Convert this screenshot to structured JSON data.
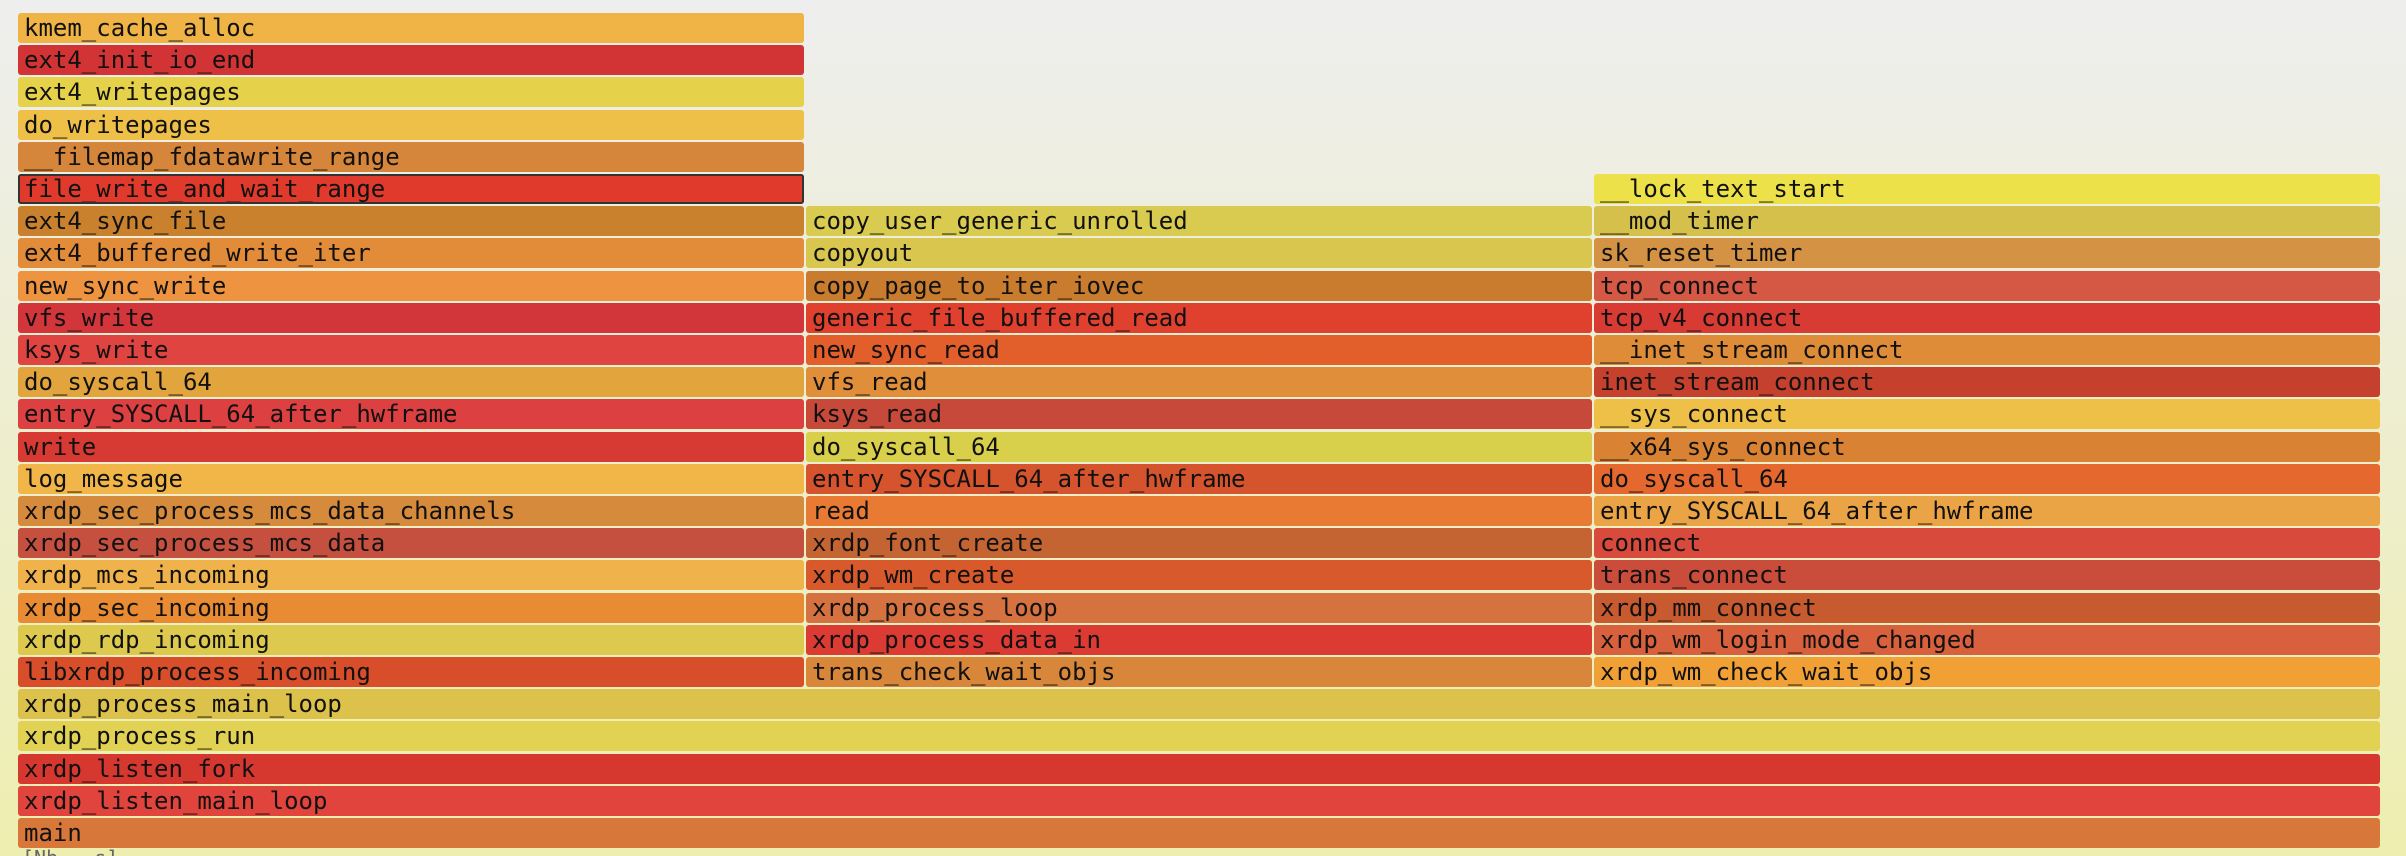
{
  "frames": [
    {
      "name": "main",
      "col": 0,
      "span": 3,
      "level": 0,
      "color": "#d8773a"
    },
    {
      "name": "xrdp_listen_main_loop",
      "col": 0,
      "span": 3,
      "level": 1,
      "color": "#e0443c"
    },
    {
      "name": "xrdp_listen_fork",
      "col": 0,
      "span": 3,
      "level": 2,
      "color": "#d63830"
    },
    {
      "name": "xrdp_process_run",
      "col": 0,
      "span": 3,
      "level": 3,
      "color": "#e2d254"
    },
    {
      "name": "xrdp_process_main_loop",
      "col": 0,
      "span": 3,
      "level": 4,
      "color": "#dcc24a"
    },
    {
      "name": "libxrdp_process_incoming",
      "col": 0,
      "span": 1,
      "level": 5,
      "color": "#d84d2a"
    },
    {
      "name": "xrdp_rdp_incoming",
      "col": 0,
      "span": 1,
      "level": 6,
      "color": "#dcc94e"
    },
    {
      "name": "xrdp_sec_incoming",
      "col": 0,
      "span": 1,
      "level": 7,
      "color": "#e88b32"
    },
    {
      "name": "xrdp_mcs_incoming",
      "col": 0,
      "span": 1,
      "level": 8,
      "color": "#f0b24a"
    },
    {
      "name": "xrdp_sec_process_mcs_data",
      "col": 0,
      "span": 1,
      "level": 9,
      "color": "#c55040"
    },
    {
      "name": "xrdp_sec_process_mcs_data_channels",
      "col": 0,
      "span": 1,
      "level": 10,
      "color": "#d58a3c"
    },
    {
      "name": "log_message",
      "col": 0,
      "span": 1,
      "level": 11,
      "color": "#f2b548"
    },
    {
      "name": "write",
      "col": 0,
      "span": 1,
      "level": 12,
      "color": "#d63a32"
    },
    {
      "name": "entry_SYSCALL_64_after_hwframe",
      "col": 0,
      "span": 1,
      "level": 13,
      "color": "#dc4040"
    },
    {
      "name": "do_syscall_64",
      "col": 0,
      "span": 1,
      "level": 14,
      "color": "#e2a43c"
    },
    {
      "name": "ksys_write",
      "col": 0,
      "span": 1,
      "level": 15,
      "color": "#e04440"
    },
    {
      "name": "vfs_write",
      "col": 0,
      "span": 1,
      "level": 16,
      "color": "#d2353a"
    },
    {
      "name": "new_sync_write",
      "col": 0,
      "span": 1,
      "level": 17,
      "color": "#ee9440"
    },
    {
      "name": "ext4_buffered_write_iter",
      "col": 0,
      "span": 1,
      "level": 18,
      "color": "#e28c3a"
    },
    {
      "name": "ext4_sync_file",
      "col": 0,
      "span": 1,
      "level": 19,
      "color": "#c9812e"
    },
    {
      "name": "file_write_and_wait_range",
      "col": 0,
      "span": 1,
      "level": 20,
      "color": "#e03a2c",
      "selected": true
    },
    {
      "name": "__filemap_fdatawrite_range",
      "col": 0,
      "span": 1,
      "level": 21,
      "color": "#d6863a"
    },
    {
      "name": "do_writepages",
      "col": 0,
      "span": 1,
      "level": 22,
      "color": "#eec048"
    },
    {
      "name": "ext4_writepages",
      "col": 0,
      "span": 1,
      "level": 23,
      "color": "#e6d24a"
    },
    {
      "name": "ext4_init_io_end",
      "col": 0,
      "span": 1,
      "level": 24,
      "color": "#d23334"
    },
    {
      "name": "kmem_cache_alloc",
      "col": 0,
      "span": 1,
      "level": 25,
      "color": "#f0b446"
    },
    {
      "name": "trans_check_wait_objs",
      "col": 1,
      "span": 1,
      "level": 5,
      "color": "#d8863a"
    },
    {
      "name": "xrdp_process_data_in",
      "col": 1,
      "span": 1,
      "level": 6,
      "color": "#dc3b34"
    },
    {
      "name": "xrdp_process_loop",
      "col": 1,
      "span": 1,
      "level": 7,
      "color": "#d67240"
    },
    {
      "name": "xrdp_wm_create",
      "col": 1,
      "span": 1,
      "level": 8,
      "color": "#d85a2c"
    },
    {
      "name": "xrdp_font_create",
      "col": 1,
      "span": 1,
      "level": 9,
      "color": "#c46432"
    },
    {
      "name": "read",
      "col": 1,
      "span": 1,
      "level": 10,
      "color": "#e87a34"
    },
    {
      "name": "entry_SYSCALL_64_after_hwframe",
      "col": 1,
      "span": 1,
      "level": 11,
      "color": "#d5542e"
    },
    {
      "name": "do_syscall_64",
      "col": 1,
      "span": 1,
      "level": 12,
      "color": "#d8d04a"
    },
    {
      "name": "ksys_read",
      "col": 1,
      "span": 1,
      "level": 13,
      "color": "#c6493a"
    },
    {
      "name": "vfs_read",
      "col": 1,
      "span": 1,
      "level": 14,
      "color": "#e08e3a"
    },
    {
      "name": "new_sync_read",
      "col": 1,
      "span": 1,
      "level": 15,
      "color": "#e25e2a"
    },
    {
      "name": "generic_file_buffered_read",
      "col": 1,
      "span": 1,
      "level": 16,
      "color": "#e0402e"
    },
    {
      "name": "copy_page_to_iter_iovec",
      "col": 1,
      "span": 1,
      "level": 17,
      "color": "#c97c2e"
    },
    {
      "name": "copyout",
      "col": 1,
      "span": 1,
      "level": 18,
      "color": "#d8c64e"
    },
    {
      "name": "copy_user_generic_unrolled",
      "col": 1,
      "span": 1,
      "level": 19,
      "color": "#d9cb50"
    },
    {
      "name": "xrdp_wm_check_wait_objs",
      "col": 2,
      "span": 1,
      "level": 5,
      "color": "#f0a034"
    },
    {
      "name": "xrdp_wm_login_mode_changed",
      "col": 2,
      "span": 1,
      "level": 6,
      "color": "#d8603c"
    },
    {
      "name": "xrdp_mm_connect",
      "col": 2,
      "span": 1,
      "level": 7,
      "color": "#c85a30"
    },
    {
      "name": "trans_connect",
      "col": 2,
      "span": 1,
      "level": 8,
      "color": "#c94d3a"
    },
    {
      "name": "connect",
      "col": 2,
      "span": 1,
      "level": 9,
      "color": "#d84a3c"
    },
    {
      "name": "entry_SYSCALL_64_after_hwframe",
      "col": 2,
      "span": 1,
      "level": 10,
      "color": "#eba445"
    },
    {
      "name": "do_syscall_64",
      "col": 2,
      "span": 1,
      "level": 11,
      "color": "#e5692e"
    },
    {
      "name": "__x64_sys_connect",
      "col": 2,
      "span": 1,
      "level": 12,
      "color": "#d98234"
    },
    {
      "name": "__sys_connect",
      "col": 2,
      "span": 1,
      "level": 13,
      "color": "#eec048"
    },
    {
      "name": "inet_stream_connect",
      "col": 2,
      "span": 1,
      "level": 14,
      "color": "#c6402e"
    },
    {
      "name": "__inet_stream_connect",
      "col": 2,
      "span": 1,
      "level": 15,
      "color": "#df8c38"
    },
    {
      "name": "tcp_v4_connect",
      "col": 2,
      "span": 1,
      "level": 16,
      "color": "#d83a34"
    },
    {
      "name": "tcp_connect",
      "col": 2,
      "span": 1,
      "level": 17,
      "color": "#d45844"
    },
    {
      "name": "sk_reset_timer",
      "col": 2,
      "span": 1,
      "level": 18,
      "color": "#d39244"
    },
    {
      "name": "__mod_timer",
      "col": 2,
      "span": 1,
      "level": 19,
      "color": "#d4c04a"
    },
    {
      "name": "__lock_text_start",
      "col": 2,
      "span": 1,
      "level": 20,
      "color": "#ede14a"
    }
  ],
  "footer": {
    "text": "[Nb...s]"
  }
}
